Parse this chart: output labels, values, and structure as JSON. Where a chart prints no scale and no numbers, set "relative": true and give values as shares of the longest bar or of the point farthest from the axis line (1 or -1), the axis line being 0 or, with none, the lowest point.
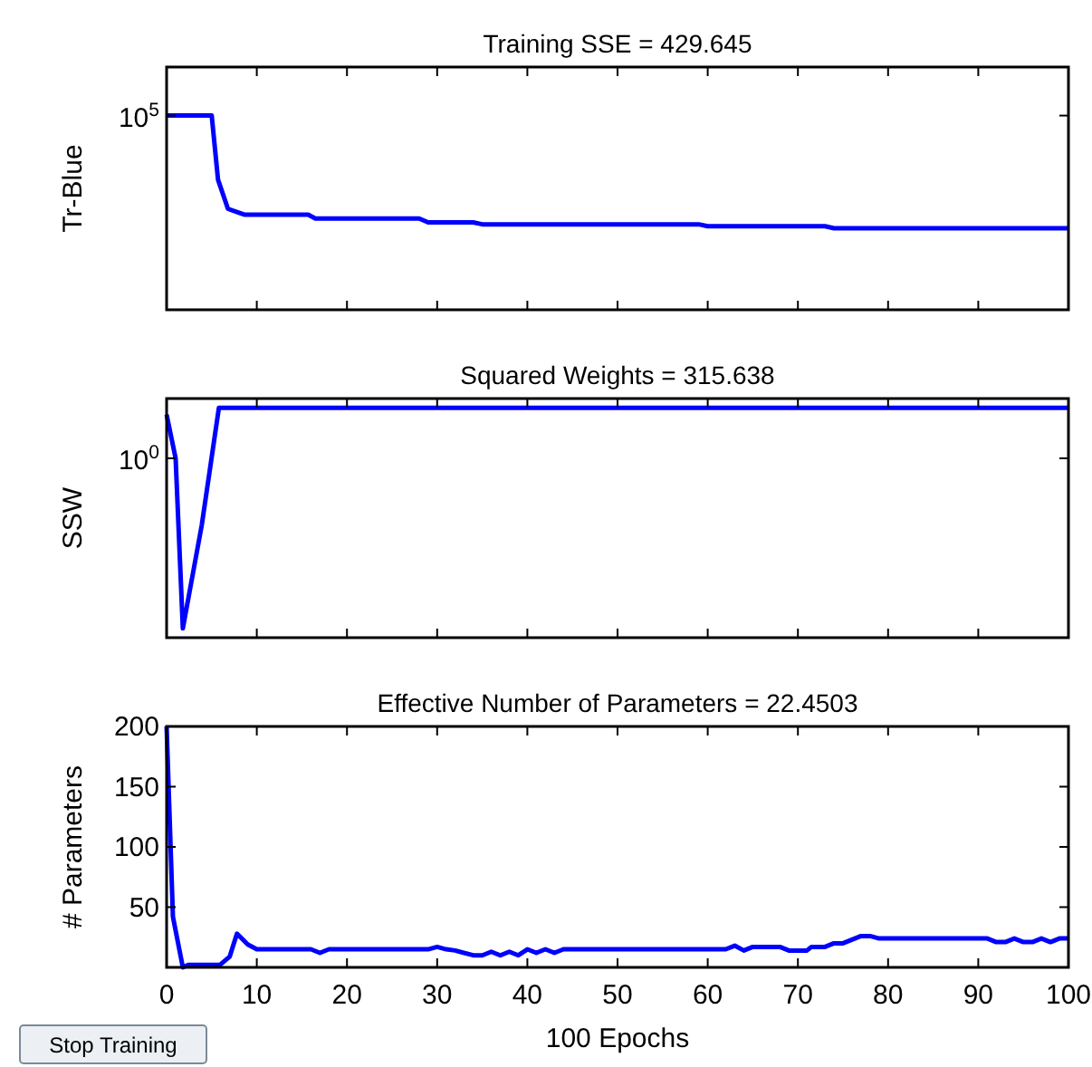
{
  "chart_data": [
    {
      "type": "line",
      "title": "Training SSE = 429.645",
      "ylabel": "Tr-Blue",
      "relative": true,
      "xlim": [
        0,
        100
      ],
      "xticks": [
        0,
        10,
        20,
        30,
        40,
        50,
        60,
        70,
        80,
        90,
        100
      ],
      "tick_labels": false,
      "grid": false,
      "legend": false,
      "marker": "none",
      "annotations": [
        "10$^{5}$"
      ],
      "series": [
        {
          "color": "#0000ff",
          "x": [
            0,
            5,
            5.7,
            6.8,
            8.6,
            15.7,
            16.5,
            28,
            29,
            34,
            35,
            59,
            60,
            73,
            74,
            100
          ],
          "values": [
            1,
            1,
            0.67,
            0.52,
            0.49,
            0.49,
            0.47,
            0.47,
            0.45,
            0.45,
            0.44,
            0.44,
            0.43,
            0.43,
            0.42,
            0.42
          ]
        }
      ]
    },
    {
      "type": "line",
      "title": "Squared Weights = 315.638",
      "ylabel": "SSW",
      "relative": true,
      "xlim": [
        0,
        100
      ],
      "xticks": [
        0,
        10,
        20,
        30,
        40,
        50,
        60,
        70,
        80,
        90,
        100
      ],
      "tick_labels": false,
      "grid": false,
      "legend": false,
      "marker": "none",
      "annotations": [
        "10$^{0}$"
      ],
      "series": [
        {
          "color": "#0000ff",
          "x": [
            0,
            1,
            1.8,
            3.9,
            5.8,
            100
          ],
          "values": [
            0.97,
            0.78,
            0.04,
            0.49,
            1,
            1
          ]
        }
      ]
    },
    {
      "type": "line",
      "title": "Effective Number of Parameters = 22.4503",
      "xlabel": "100 Epochs",
      "ylabel": "# Parameters",
      "xlim": [
        0,
        100
      ],
      "xticks": [
        0,
        10,
        20,
        30,
        40,
        50,
        60,
        70,
        80,
        90,
        100
      ],
      "ylim": [
        0,
        200
      ],
      "yticks": [
        50,
        100,
        150,
        200
      ],
      "grid": false,
      "legend": false,
      "marker": "none",
      "annotations": [
        "Stop Training"
      ],
      "series": [
        {
          "color": "#0000ff",
          "x": [
            0,
            0.7,
            1.8,
            2.4,
            5.9,
            7,
            7.8,
            9,
            10,
            16,
            17,
            18,
            29,
            30,
            31,
            32,
            34,
            35,
            36,
            37,
            38,
            39,
            40,
            41,
            42,
            43,
            44,
            62,
            63,
            64,
            65,
            68,
            69,
            71,
            71.5,
            73,
            74,
            75,
            77,
            78,
            79,
            91,
            92,
            93,
            94,
            95,
            96,
            97,
            98,
            99,
            100
          ],
          "values": [
            200,
            42,
            0,
            2,
            2,
            9,
            28,
            19,
            15,
            15,
            12,
            15,
            15,
            17,
            15,
            14,
            10,
            10,
            13,
            10,
            13,
            10,
            15,
            12,
            15,
            12,
            15,
            15,
            18,
            14,
            17,
            17,
            14,
            14,
            17,
            17,
            20,
            20,
            26,
            26,
            24,
            24,
            21,
            21,
            24,
            21,
            21,
            24,
            21,
            24,
            24
          ]
        }
      ]
    }
  ]
}
